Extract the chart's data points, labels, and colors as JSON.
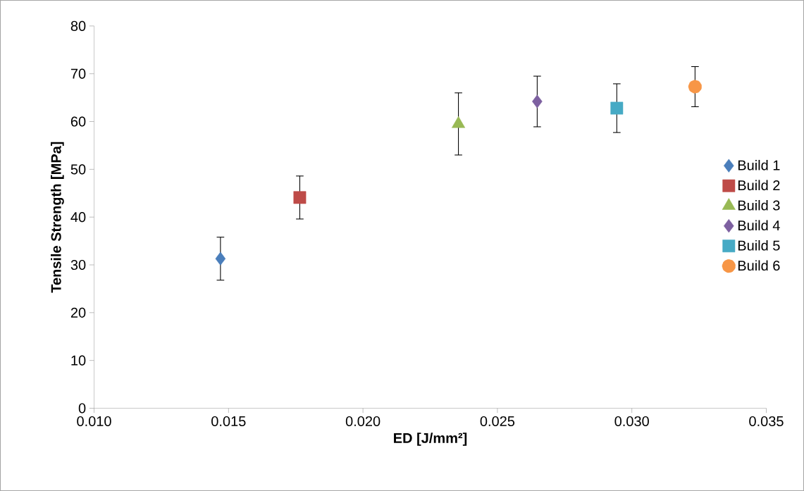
{
  "chart_data": {
    "type": "scatter",
    "xlabel": "ED [J/mm²]",
    "ylabel": "Tensile Strength [MPa]",
    "xlim": [
      0.01,
      0.035
    ],
    "ylim": [
      0,
      80
    ],
    "xticks": [
      {
        "value": 0.01,
        "label": "0.010"
      },
      {
        "value": 0.015,
        "label": "0.015"
      },
      {
        "value": 0.02,
        "label": "0.020"
      },
      {
        "value": 0.025,
        "label": "0.025"
      },
      {
        "value": 0.03,
        "label": "0.030"
      },
      {
        "value": 0.035,
        "label": "0.035"
      }
    ],
    "yticks": [
      0,
      10,
      20,
      30,
      40,
      50,
      60,
      70,
      80
    ],
    "grid": false,
    "legend": "right",
    "series": [
      {
        "name": "Build 1",
        "color": "#4a7ebb",
        "marker": "diamond",
        "x": [
          0.0147
        ],
        "values": [
          31.3
        ],
        "errors": [
          4.5
        ]
      },
      {
        "name": "Build 2",
        "color": "#be4b48",
        "marker": "square",
        "x": [
          0.01765
        ],
        "values": [
          44.1
        ],
        "errors": [
          4.5
        ]
      },
      {
        "name": "Build 3",
        "color": "#98b954",
        "marker": "triangle",
        "x": [
          0.02355
        ],
        "values": [
          59.5
        ],
        "errors": [
          6.5
        ]
      },
      {
        "name": "Build 4",
        "color": "#7d60a0",
        "marker": "diamond",
        "x": [
          0.02648
        ],
        "values": [
          64.2
        ],
        "errors": [
          5.3
        ]
      },
      {
        "name": "Build 5",
        "color": "#46aac5",
        "marker": "square",
        "x": [
          0.02944
        ],
        "values": [
          62.8
        ],
        "errors": [
          5.1
        ]
      },
      {
        "name": "Build 6",
        "color": "#f79646",
        "marker": "circle",
        "x": [
          0.03235
        ],
        "values": [
          67.3
        ],
        "errors": [
          4.2
        ]
      }
    ]
  }
}
